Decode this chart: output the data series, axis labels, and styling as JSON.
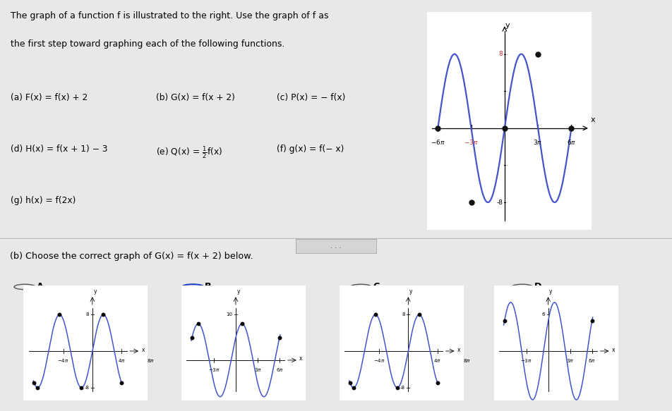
{
  "bg_color": "#e8e8e8",
  "white": "#ffffff",
  "curve_color": "#4455cc",
  "dot_color": "#111111",
  "title_line1": "The graph of a function f is illustrated to the right. Use the graph of f as",
  "title_line2": "the first step toward graphing each of the following functions.",
  "row1_col1": "(a) F(x) = f(x) + 2",
  "row1_col2": "(b) G(x) = f(x + 2)",
  "row1_col3": "(c) P(x) = − f(x)",
  "row2_col1": "(d) H(x) = f(x + 1) − 3",
  "row2_col3": "(f) g(x) = f(− x)",
  "row3_col1": "(g) h(x) = f(2x)",
  "question_b": "(b) Choose the correct graph of G(x) = f(x + 2) below.",
  "pi": 3.14159265358979,
  "sep_color": "#bbbbbb",
  "radio_color": "#2244cc"
}
